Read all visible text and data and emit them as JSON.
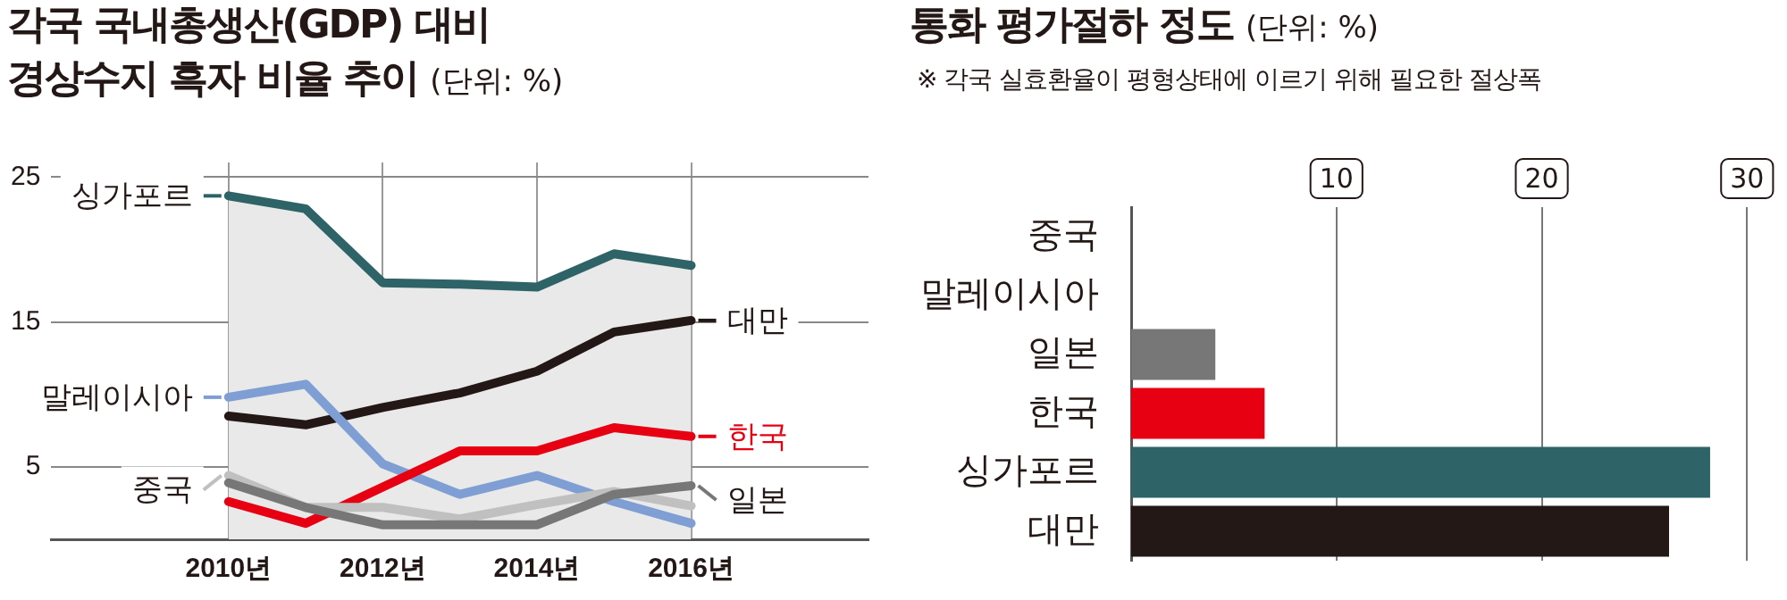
{
  "chart_data": [
    {
      "type": "line",
      "title": "각국 국내총생산(GDP) 대비 경상수지 흑자 비율 추이",
      "subtitle": "(단위: %)",
      "x": [
        2010,
        2011,
        2012,
        2013,
        2014,
        2015,
        2016
      ],
      "xlim": [
        2007.7,
        2018.3
      ],
      "xticks": [
        {
          "value": 2010,
          "label": "2010년"
        },
        {
          "value": 2012,
          "label": "2012년"
        },
        {
          "value": 2014,
          "label": "2014년"
        },
        {
          "value": 2016,
          "label": "2016년"
        }
      ],
      "ylim": [
        0,
        26
      ],
      "yticks": [
        5,
        15,
        25
      ],
      "grid": true,
      "legend": "right",
      "series": [
        {
          "name": "싱가포르",
          "type": "area",
          "color": "#2e6468",
          "values": [
            23.7,
            22.8,
            17.7,
            17.6,
            17.4,
            19.7,
            18.9
          ]
        },
        {
          "name": "대만",
          "color": "#231815",
          "values": [
            8.5,
            7.9,
            9.1,
            10.1,
            11.6,
            14.3,
            15.1
          ]
        },
        {
          "name": "말레이시아",
          "color": "#7f9fd4",
          "values": [
            9.8,
            10.7,
            5.2,
            3.1,
            4.4,
            2.6,
            1.1
          ]
        },
        {
          "name": "한국",
          "color": "#e60012",
          "values": [
            2.6,
            1.1,
            3.6,
            6.1,
            6.1,
            7.7,
            7.1
          ]
        },
        {
          "name": "중국",
          "color": "#c0c0c0",
          "values": [
            4.4,
            2.2,
            2.2,
            1.4,
            2.4,
            3.3,
            2.3
          ]
        },
        {
          "name": "일본",
          "color": "#777777",
          "values": [
            3.9,
            2.2,
            1.0,
            1.0,
            1.0,
            3.1,
            3.7
          ]
        }
      ]
    },
    {
      "type": "bar",
      "orientation": "horizontal",
      "title": "통화 평가절하 정도",
      "subtitle": "(단위: %)",
      "annotations": [
        "※ 각국 실효환율이 평형상태에 이르기 위해 필요한 절상폭"
      ],
      "categories": [
        "중국",
        "말레이시아",
        "일본",
        "한국",
        "싱가포르",
        "대만"
      ],
      "values": [
        null,
        null,
        4.1,
        6.5,
        28.2,
        26.2
      ],
      "colors": [
        "#777777",
        "#777777",
        "#777777",
        "#e60012",
        "#2e6468",
        "#231815"
      ],
      "xlim": [
        0,
        30
      ],
      "xticks": [
        10,
        20,
        30
      ],
      "grid": "x",
      "legend": false
    }
  ]
}
